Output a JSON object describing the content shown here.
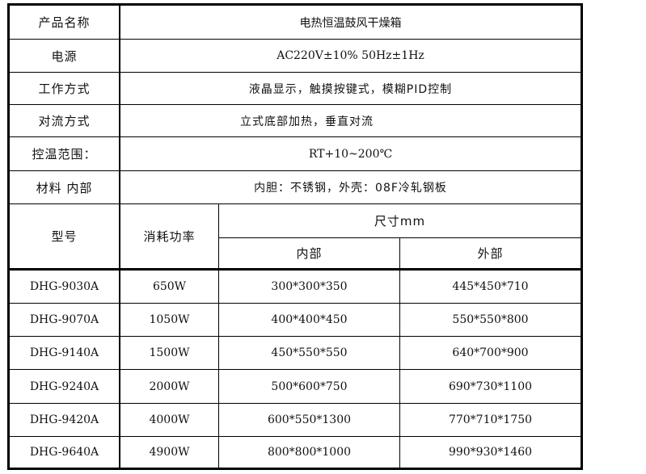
{
  "spec": [
    {
      "label": "产品名称",
      "value": "电热恒温鼓风干燥箱"
    },
    {
      "label": "电源",
      "value": "AC220V±10%  50Hz±1Hz"
    },
    {
      "label": "工作方式",
      "value": "液晶显示，触摸按键式，模糊PID控制"
    },
    {
      "label": "对流方式",
      "value": "立式底部加热，垂直对流"
    },
    {
      "label": "控温范围：",
      "value": "RT+10~200℃"
    },
    {
      "label": "材料 内部",
      "value": "内胆：不锈钢，外壳：08F冷轧钢板"
    }
  ],
  "header": {
    "model": "型号",
    "power": "消耗功率",
    "size": "尺寸mm",
    "inner": "内部",
    "outer": "外部"
  },
  "rows": [
    {
      "model": "DHG-9030A",
      "power": "650W",
      "inner": "300*300*350",
      "outer": "445*450*710"
    },
    {
      "model": "DHG-9070A",
      "power": "1050W",
      "inner": "400*400*450",
      "outer": "550*550*800"
    },
    {
      "model": "DHG-9140A",
      "power": "1500W",
      "inner": "450*550*550",
      "outer": "640*700*900"
    },
    {
      "model": "DHG-9240A",
      "power": "2000W",
      "inner": "500*600*750",
      "outer": "690*730*1100"
    },
    {
      "model": "DHG-9420A",
      "power": "4000W",
      "inner": "600*550*1300",
      "outer": "770*710*1750"
    },
    {
      "model": "DHG-9640A",
      "power": "4900W",
      "inner": "800*800*1000",
      "outer": "990*930*1460"
    }
  ]
}
